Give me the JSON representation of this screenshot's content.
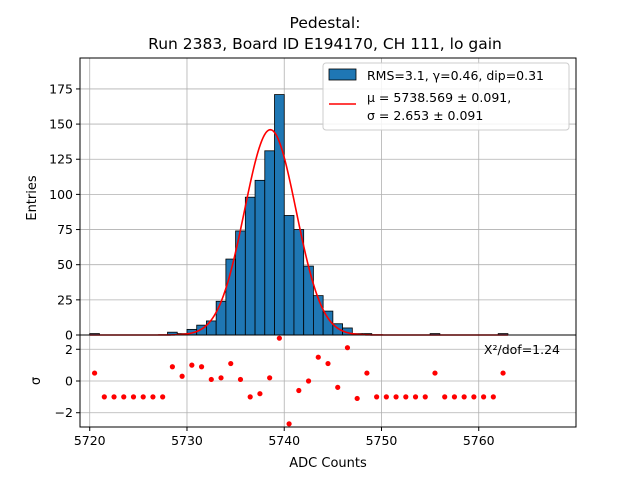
{
  "chart_data": {
    "type": "bar",
    "title_line1": "Pedestal:",
    "title_line2": "Run 2383, Board ID E194170, CH 111, lo gain",
    "xlabel": "ADC Counts",
    "ylabel_top": "Entries",
    "ylabel_bottom": "σ",
    "xlim": [
      5719,
      5770
    ],
    "ylim_top": [
      0,
      197
    ],
    "ylim_bottom": [
      -2.9,
      2.9
    ],
    "xticks": [
      "5720",
      "5730",
      "5740",
      "5750",
      "5760"
    ],
    "yticks_top": [
      "0",
      "25",
      "50",
      "75",
      "100",
      "125",
      "150",
      "175"
    ],
    "yticks_bottom": [
      "−2",
      "0",
      "2"
    ],
    "grid": true,
    "legend_position": "top-right",
    "colors": {
      "bars": "#1f77b4",
      "fit": "#ff0000",
      "residuals": "#ff0000"
    },
    "histogram": {
      "bin_starts": [
        5720,
        5721,
        5722,
        5723,
        5724,
        5725,
        5726,
        5727,
        5728,
        5729,
        5730,
        5731,
        5732,
        5733,
        5734,
        5735,
        5736,
        5737,
        5738,
        5739,
        5740,
        5741,
        5742,
        5743,
        5744,
        5745,
        5746,
        5747,
        5748,
        5749,
        5750,
        5751,
        5752,
        5753,
        5754,
        5755,
        5756,
        5757,
        5758,
        5759,
        5760,
        5761,
        5762
      ],
      "counts": [
        1,
        0,
        0,
        0,
        0,
        0,
        0,
        0,
        2,
        1,
        4,
        7,
        10,
        24,
        54,
        74,
        98,
        110,
        131,
        171,
        85,
        75,
        49,
        28,
        17,
        8,
        5,
        1,
        1,
        0,
        0,
        0,
        0,
        0,
        0,
        1,
        0,
        0,
        0,
        0,
        0,
        0,
        1
      ],
      "label": "RMS=3.1, γ=0.46, dip=0.31"
    },
    "fit": {
      "mu": 5738.569,
      "sigma": 2.653,
      "amplitude": 146,
      "label_mu": "μ = 5738.569 ± 0.091,",
      "label_sigma": "σ = 2.653 ± 0.091"
    },
    "residuals": {
      "x": [
        5720.5,
        5721.5,
        5722.5,
        5723.5,
        5724.5,
        5725.5,
        5726.5,
        5727.5,
        5728.5,
        5729.5,
        5730.5,
        5731.5,
        5732.5,
        5733.5,
        5734.5,
        5735.5,
        5736.5,
        5737.5,
        5738.5,
        5739.5,
        5740.5,
        5741.5,
        5742.5,
        5743.5,
        5744.5,
        5745.5,
        5746.5,
        5747.5,
        5748.5,
        5749.5,
        5750.5,
        5751.5,
        5752.5,
        5753.5,
        5754.5,
        5755.5,
        5756.5,
        5757.5,
        5758.5,
        5759.5,
        5760.5,
        5761.5,
        5762.5
      ],
      "y": [
        0.5,
        -1,
        -1,
        -1,
        -1,
        -1,
        -1,
        -1,
        0.9,
        0.3,
        1,
        0.9,
        0.1,
        0.2,
        1.1,
        0.1,
        -1,
        -0.8,
        0.2,
        2.7,
        -2.7,
        -0.6,
        0,
        1.5,
        1.1,
        -0.4,
        2.1,
        -1.1,
        0.5,
        -1,
        -1,
        -1,
        -1,
        -1,
        -1,
        0.5,
        -1,
        -1,
        -1,
        -1,
        -1,
        -1,
        0.5
      ]
    },
    "chi2_label": "Χ²/dof=1.24"
  }
}
